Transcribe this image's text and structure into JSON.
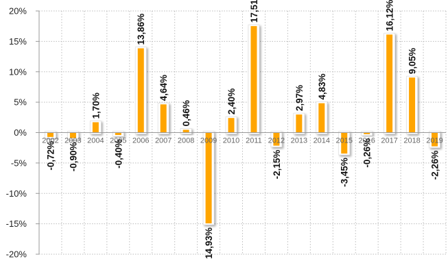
{
  "chart_data": {
    "type": "bar",
    "categories": [
      "2002",
      "2003",
      "2004",
      "2005",
      "2006",
      "2007",
      "2008",
      "2009",
      "2010",
      "2011",
      "2012",
      "2013",
      "2014",
      "2015",
      "2016",
      "2017",
      "2018",
      "2019"
    ],
    "values": [
      -0.72,
      -0.9,
      1.7,
      -0.4,
      13.86,
      4.64,
      0.46,
      -14.93,
      2.4,
      17.51,
      -2.15,
      2.97,
      4.83,
      -3.45,
      -0.26,
      16.12,
      9.05,
      -2.26
    ],
    "data_labels": [
      "-0,72%",
      "-0,90%",
      "1,70%",
      "-0,40%",
      "13,86%",
      "4,64%",
      "0,46%",
      "-14,93%",
      "2,40%",
      "17,51%",
      "-2,15%",
      "2,97%",
      "4,83%",
      "-3,45%",
      "-0,26%",
      "16,12%",
      "9,05%",
      "-2,26%"
    ],
    "y_ticks": [
      20,
      15,
      10,
      5,
      0,
      -5,
      -10,
      -15,
      -20
    ],
    "y_tick_labels": [
      "20%",
      "15%",
      "10%",
      "5%",
      "0%",
      "-5%",
      "-10%",
      "-15%",
      "-20%"
    ],
    "ylim": [
      -20,
      20
    ],
    "title": "",
    "xlabel": "",
    "ylabel": "",
    "grid": true,
    "colors": {
      "bar_fill": "#FFA500",
      "bar_frame": "#FFFFFF",
      "grid": "#BBBBBB",
      "axis": "#999999"
    }
  }
}
